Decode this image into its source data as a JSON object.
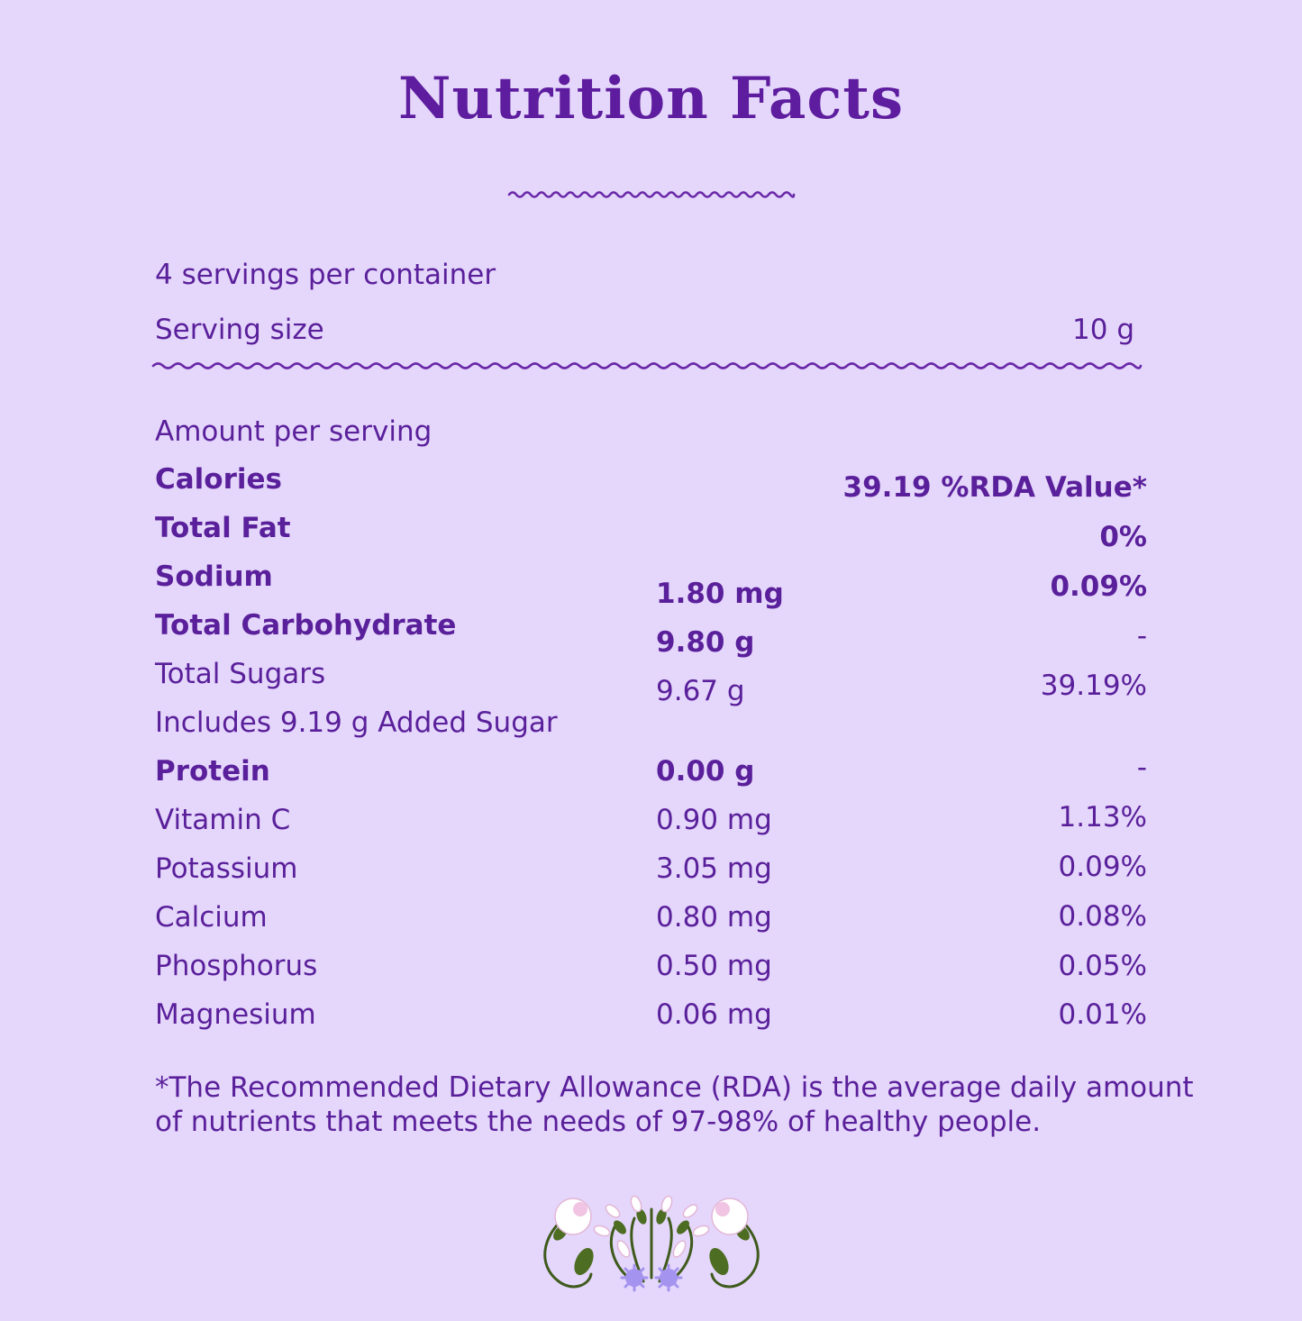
{
  "title": "Nutrition Facts",
  "servings": "4 servings per container",
  "serving_size": {
    "label": "Serving size",
    "value": "10 g"
  },
  "amount_per_serving": "Amount per serving",
  "rows": [
    {
      "name": "Calories",
      "amount": "",
      "rda": "39.19 %RDA Value*"
    },
    {
      "name": "Total Fat",
      "amount": "",
      "rda": "0%"
    },
    {
      "name": "Sodium",
      "amount": "1.80 mg",
      "rda": "0.09%"
    },
    {
      "name": "Total Carbohydrate",
      "amount": "9.80 g",
      "rda": "-"
    },
    {
      "name": "Total Sugars",
      "amount": "9.67 g",
      "rda": "39.19%"
    },
    {
      "name": "Includes 9.19 g Added Sugar",
      "amount": "",
      "rda": ""
    },
    {
      "name": "Protein",
      "amount": "0.00 g",
      "rda": "-"
    },
    {
      "name": "Vitamin C",
      "amount": "0.90 mg",
      "rda": "1.13%"
    },
    {
      "name": "Potassium",
      "amount": "3.05 mg",
      "rda": "0.09%"
    },
    {
      "name": "Calcium",
      "amount": "0.80 mg",
      "rda": "0.08%"
    },
    {
      "name": "Phosphorus",
      "amount": "0.50 mg",
      "rda": "0.05%"
    },
    {
      "name": "Magnesium",
      "amount": "0.06 mg",
      "rda": "0.01%"
    }
  ],
  "footnote": {
    "line1": "*The Recommended Dietary Allowance (RDA) is the average daily amount",
    "line2": "of nutrients that meets the needs of 97-98% of healthy people."
  },
  "colors": {
    "background": "#e4d7fb",
    "text": "#5a1f9a",
    "title": "#5e1c9e"
  },
  "icons": {
    "divider": "wavy-line-icon",
    "decoration": "floral-ornament-icon"
  }
}
